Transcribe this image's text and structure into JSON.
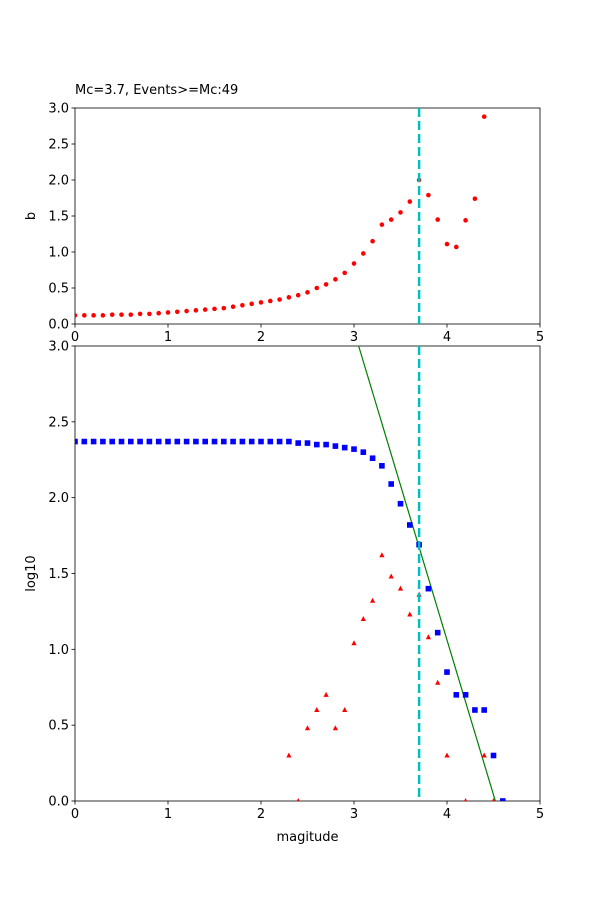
{
  "chart_data": [
    {
      "type": "scatter",
      "title": "Mc=3.7, Events>=Mc:49",
      "xlabel": "",
      "ylabel": "b",
      "xlim": [
        0,
        5
      ],
      "ylim": [
        0,
        3.0
      ],
      "xticks": [
        "0",
        "1",
        "2",
        "3",
        "4",
        "5"
      ],
      "yticks": [
        "0.0",
        "0.5",
        "1.0",
        "1.5",
        "2.0",
        "2.5",
        "3.0"
      ],
      "mc_line": 3.7,
      "series": [
        {
          "marker": "circle",
          "color": "#ff0000",
          "x": [
            0.0,
            0.1,
            0.2,
            0.3,
            0.4,
            0.5,
            0.6,
            0.7,
            0.8,
            0.9,
            1.0,
            1.1,
            1.2,
            1.3,
            1.4,
            1.5,
            1.6,
            1.7,
            1.8,
            1.9,
            2.0,
            2.1,
            2.2,
            2.3,
            2.4,
            2.5,
            2.6,
            2.7,
            2.8,
            2.9,
            3.0,
            3.1,
            3.2,
            3.3,
            3.4,
            3.5,
            3.6,
            3.7,
            3.8,
            3.9,
            4.0,
            4.1,
            4.2,
            4.3,
            4.4
          ],
          "y": [
            0.12,
            0.12,
            0.12,
            0.12,
            0.13,
            0.13,
            0.13,
            0.14,
            0.14,
            0.15,
            0.16,
            0.17,
            0.18,
            0.19,
            0.2,
            0.21,
            0.22,
            0.24,
            0.26,
            0.28,
            0.3,
            0.32,
            0.34,
            0.37,
            0.4,
            0.44,
            0.5,
            0.55,
            0.62,
            0.71,
            0.84,
            0.98,
            1.15,
            1.38,
            1.45,
            1.55,
            1.7,
            2.0,
            1.79,
            1.45,
            1.11,
            1.07,
            1.44,
            1.74,
            2.88
          ]
        }
      ]
    },
    {
      "type": "scatter",
      "title": "",
      "xlabel": "magitude",
      "ylabel": "log10",
      "xlim": [
        0,
        5
      ],
      "ylim": [
        0,
        3.0
      ],
      "xticks": [
        "0",
        "1",
        "2",
        "3",
        "4",
        "5"
      ],
      "yticks": [
        "0.0",
        "0.5",
        "1.0",
        "1.5",
        "2.0",
        "2.5",
        "3.0"
      ],
      "mc_line": 3.7,
      "fit_line": {
        "color": "#008000",
        "x": [
          3.05,
          4.52
        ],
        "y": [
          3.0,
          0.0
        ]
      },
      "series": [
        {
          "marker": "square",
          "color": "#0000ff",
          "x": [
            0.0,
            0.1,
            0.2,
            0.3,
            0.4,
            0.5,
            0.6,
            0.7,
            0.8,
            0.9,
            1.0,
            1.1,
            1.2,
            1.3,
            1.4,
            1.5,
            1.6,
            1.7,
            1.8,
            1.9,
            2.0,
            2.1,
            2.2,
            2.3,
            2.4,
            2.5,
            2.6,
            2.7,
            2.8,
            2.9,
            3.0,
            3.1,
            3.2,
            3.3,
            3.4,
            3.5,
            3.6,
            3.7,
            3.8,
            3.9,
            4.0,
            4.1,
            4.2,
            4.3,
            4.4,
            4.5,
            4.6
          ],
          "y": [
            2.37,
            2.37,
            2.37,
            2.37,
            2.37,
            2.37,
            2.37,
            2.37,
            2.37,
            2.37,
            2.37,
            2.37,
            2.37,
            2.37,
            2.37,
            2.37,
            2.37,
            2.37,
            2.37,
            2.37,
            2.37,
            2.37,
            2.37,
            2.37,
            2.36,
            2.36,
            2.35,
            2.35,
            2.34,
            2.33,
            2.32,
            2.3,
            2.26,
            2.21,
            2.09,
            1.96,
            1.82,
            1.69,
            1.4,
            1.11,
            0.85,
            0.7,
            0.7,
            0.6,
            0.6,
            0.3,
            0.0
          ]
        },
        {
          "marker": "triangle",
          "color": "#ff0000",
          "x": [
            2.3,
            2.4,
            2.5,
            2.6,
            2.7,
            2.8,
            2.9,
            3.0,
            3.1,
            3.2,
            3.3,
            3.4,
            3.5,
            3.6,
            3.7,
            3.8,
            3.9,
            4.0,
            4.2,
            4.4,
            4.5
          ],
          "y": [
            0.3,
            0.0,
            0.48,
            0.6,
            0.7,
            0.48,
            0.6,
            1.04,
            1.2,
            1.32,
            1.62,
            1.48,
            1.4,
            1.23,
            1.36,
            1.08,
            0.78,
            0.3,
            0.0,
            0.3,
            0.0
          ]
        }
      ]
    }
  ]
}
